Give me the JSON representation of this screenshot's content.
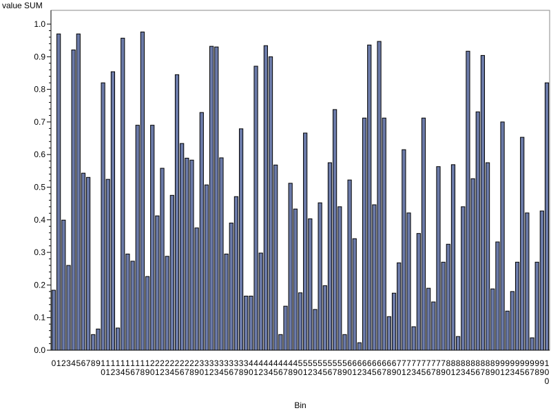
{
  "chart_data": {
    "type": "bar",
    "title": "",
    "ylabel": "value SUM",
    "xlabel": "Bin",
    "ylim": [
      0,
      1.0
    ],
    "yticks": [
      0.0,
      0.1,
      0.2,
      0.3,
      0.4,
      0.5,
      0.6,
      0.7,
      0.8,
      0.9,
      1.0
    ],
    "ytick_labels": [
      "0.0",
      "0.1",
      "0.2",
      "0.3",
      "0.4",
      "0.5",
      "0.6",
      "0.7",
      "0.8",
      "0.9",
      "1.0"
    ],
    "grid": false,
    "categories": [
      0,
      1,
      2,
      3,
      4,
      5,
      6,
      7,
      8,
      9,
      10,
      11,
      12,
      13,
      14,
      15,
      16,
      17,
      18,
      19,
      20,
      21,
      22,
      23,
      24,
      25,
      26,
      27,
      28,
      29,
      30,
      31,
      32,
      33,
      34,
      35,
      36,
      37,
      38,
      39,
      40,
      41,
      42,
      43,
      44,
      45,
      46,
      47,
      48,
      49,
      50,
      51,
      52,
      53,
      54,
      55,
      56,
      57,
      58,
      59,
      60,
      61,
      62,
      63,
      64,
      65,
      66,
      67,
      68,
      69,
      70,
      71,
      72,
      73,
      74,
      75,
      76,
      77,
      78,
      79,
      80,
      81,
      82,
      83,
      84,
      85,
      86,
      87,
      88,
      89,
      90,
      91,
      92,
      93,
      94,
      95,
      96,
      97,
      98,
      99,
      100
    ],
    "values": [
      0.184,
      0.97,
      0.399,
      0.26,
      0.921,
      0.97,
      0.543,
      0.53,
      0.048,
      0.065,
      0.82,
      0.524,
      0.854,
      0.068,
      0.957,
      0.295,
      0.273,
      0.69,
      0.976,
      0.226,
      0.69,
      0.412,
      0.558,
      0.288,
      0.475,
      0.845,
      0.634,
      0.589,
      0.583,
      0.375,
      0.729,
      0.507,
      0.932,
      0.93,
      0.59,
      0.295,
      0.39,
      0.471,
      0.679,
      0.166,
      0.166,
      0.871,
      0.298,
      0.934,
      0.9,
      0.568,
      0.048,
      0.135,
      0.512,
      0.433,
      0.176,
      0.666,
      0.403,
      0.125,
      0.452,
      0.198,
      0.575,
      0.738,
      0.44,
      0.048,
      0.522,
      0.342,
      0.023,
      0.712,
      0.936,
      0.446,
      0.947,
      0.712,
      0.103,
      0.175,
      0.268,
      0.615,
      0.421,
      0.072,
      0.358,
      0.712,
      0.19,
      0.148,
      0.563,
      0.27,
      0.325,
      0.569,
      0.042,
      0.44,
      0.917,
      0.526,
      0.731,
      0.904,
      0.575,
      0.188,
      0.332,
      0.7,
      0.12,
      0.18,
      0.27,
      0.653,
      0.421,
      0.038,
      0.27,
      0.427,
      0.82
    ],
    "colors": {
      "bar_fill": "#6b7aa8",
      "bar_stroke": "#000000",
      "axis": "#000000",
      "frame": "#888888"
    }
  }
}
